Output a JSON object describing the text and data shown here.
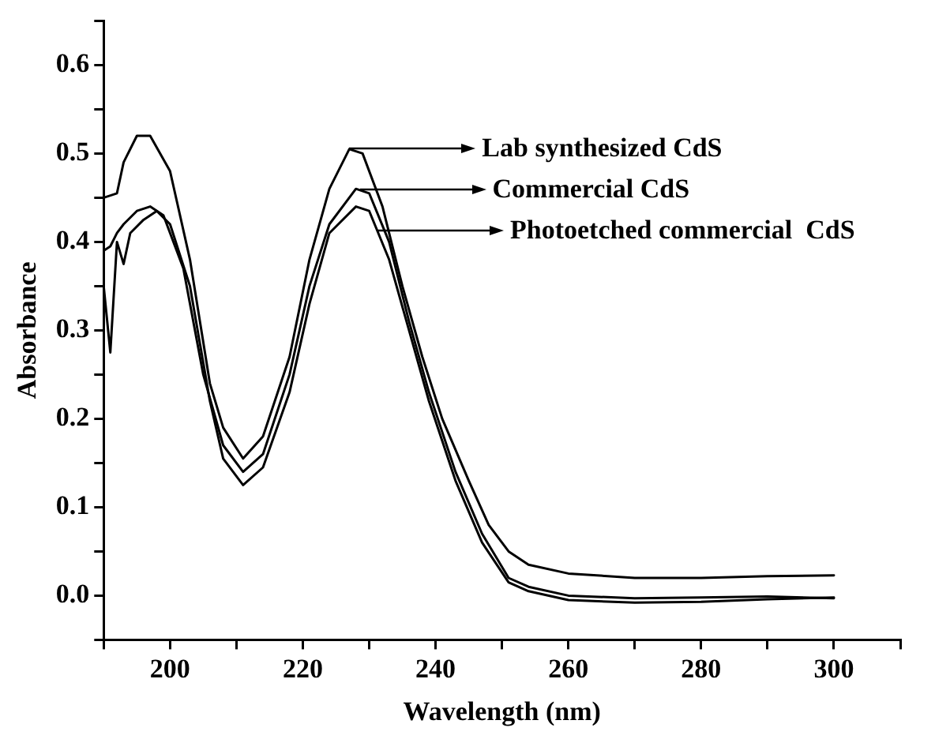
{
  "chart_data": {
    "type": "line",
    "xlabel": "Wavelength (nm)",
    "ylabel": "Absorbance",
    "xlim": [
      190,
      310
    ],
    "xticks": [
      {
        "value": 190,
        "label": null
      },
      200,
      {
        "value": 210,
        "label": null
      },
      220,
      {
        "value": 230,
        "label": null
      },
      240,
      {
        "value": 250,
        "label": null
      },
      260,
      {
        "value": 270,
        "label": null
      },
      280,
      {
        "value": 290,
        "label": null
      },
      300,
      {
        "value": 310,
        "label": null
      }
    ],
    "ylim": [
      -0.05,
      0.65
    ],
    "yticks": [
      {
        "value": -0.05,
        "label": null
      },
      {
        "value": 0,
        "label": "0.0"
      },
      {
        "value": 0.05,
        "label": null
      },
      0.1,
      {
        "value": 0.15,
        "label": null
      },
      0.2,
      {
        "value": 0.25,
        "label": null
      },
      0.3,
      {
        "value": 0.35,
        "label": null
      },
      0.4,
      {
        "value": 0.45,
        "label": null
      },
      0.5,
      {
        "value": 0.55,
        "label": null
      },
      0.6,
      {
        "value": 0.65,
        "label": null
      }
    ],
    "grid": false,
    "legend": "top right",
    "marker": "none",
    "line_style": "solid",
    "series": [
      {
        "name": "Lab synthesized CdS",
        "color": "#000000",
        "x": [
          190,
          192,
          193,
          195,
          197,
          200,
          203,
          206,
          208,
          211,
          214,
          218,
          221,
          224,
          227,
          229,
          232,
          235,
          238,
          241,
          245,
          248,
          251,
          254,
          260,
          270,
          280,
          290,
          300
        ],
        "values": [
          0.45,
          0.455,
          0.49,
          0.52,
          0.52,
          0.48,
          0.38,
          0.24,
          0.19,
          0.155,
          0.18,
          0.27,
          0.38,
          0.46,
          0.505,
          0.5,
          0.44,
          0.35,
          0.27,
          0.2,
          0.13,
          0.08,
          0.05,
          0.035,
          0.025,
          0.02,
          0.02,
          0.022,
          0.023
        ]
      },
      {
        "name": "Commercial CdS",
        "color": "#000000",
        "x": [
          190,
          191,
          192,
          193,
          195,
          197,
          199,
          202,
          205,
          208,
          211,
          214,
          218,
          221,
          224,
          228,
          230,
          233,
          236,
          239,
          243,
          247,
          251,
          254,
          260,
          270,
          280,
          290,
          300
        ],
        "values": [
          0.39,
          0.395,
          0.41,
          0.42,
          0.435,
          0.44,
          0.43,
          0.37,
          0.25,
          0.17,
          0.14,
          0.16,
          0.25,
          0.35,
          0.42,
          0.46,
          0.455,
          0.4,
          0.31,
          0.23,
          0.14,
          0.07,
          0.02,
          0.01,
          0.0,
          -0.003,
          -0.002,
          -0.001,
          -0.003
        ]
      },
      {
        "name": "Photoetched commercial  CdS",
        "color": "#000000",
        "x": [
          190,
          191,
          192,
          193,
          194,
          196,
          198,
          200,
          203,
          206,
          208,
          211,
          214,
          218,
          221,
          224,
          228,
          230,
          233,
          236,
          239,
          243,
          247,
          251,
          254,
          260,
          270,
          280,
          290,
          300
        ],
        "values": [
          0.35,
          0.275,
          0.4,
          0.375,
          0.41,
          0.425,
          0.435,
          0.42,
          0.35,
          0.22,
          0.155,
          0.125,
          0.145,
          0.23,
          0.33,
          0.41,
          0.44,
          0.435,
          0.38,
          0.3,
          0.22,
          0.13,
          0.06,
          0.015,
          0.005,
          -0.005,
          -0.008,
          -0.007,
          -0.004,
          -0.002
        ]
      }
    ]
  }
}
